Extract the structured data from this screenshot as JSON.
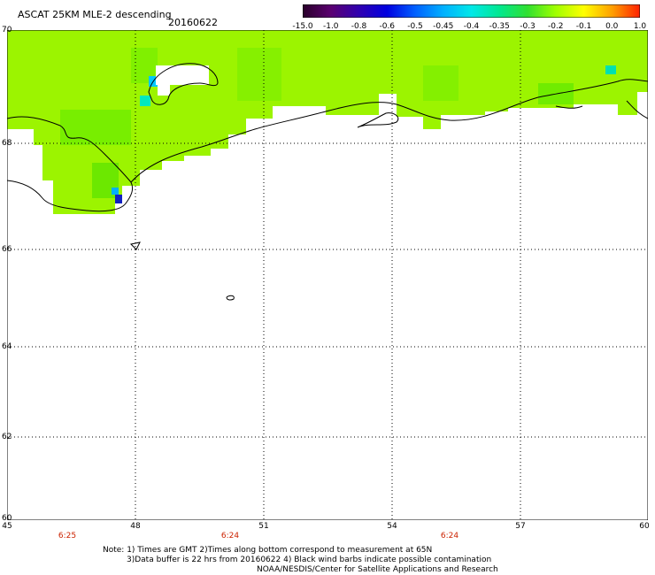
{
  "header": {
    "title": "ASCAT 25KM MLE-2 descending",
    "date": "20160622"
  },
  "colorbar": {
    "labels": [
      "-15.0",
      "-1.0",
      "-0.8",
      "-0.6",
      "-0.5",
      "-0.45",
      "-0.4",
      "-0.35",
      "-0.3",
      "-0.2",
      "-0.1",
      "0.0",
      "1.0"
    ],
    "colors": [
      "#2a002a",
      "#5a0070",
      "#3000b0",
      "#0000e0",
      "#0060ff",
      "#00b0ff",
      "#00e8e8",
      "#00e890",
      "#30e030",
      "#a0ff00",
      "#ffff00",
      "#ffa000",
      "#ff2000"
    ]
  },
  "axes": {
    "lat_labels": [
      "70",
      "68",
      "66",
      "64",
      "62",
      "60"
    ],
    "lon_labels": [
      "45",
      "48",
      "51",
      "54",
      "57",
      "60"
    ]
  },
  "times": [
    "6:25",
    "6:24",
    "6:24"
  ],
  "footer": {
    "note1": "Note: 1) Times are GMT 2)Times along bottom correspond to measurement at 65N",
    "note2": "3)Data buffer is 22 hrs from 20160622 4) Black wind barbs indicate possible contamination",
    "credit": "NOAA/NESDIS/Center for Satellite Applications and Research"
  },
  "palette": {
    "dominant": "#9cf400",
    "greener": "#60e800",
    "cyan": "#00e0d0",
    "blue": "#1020c0"
  }
}
